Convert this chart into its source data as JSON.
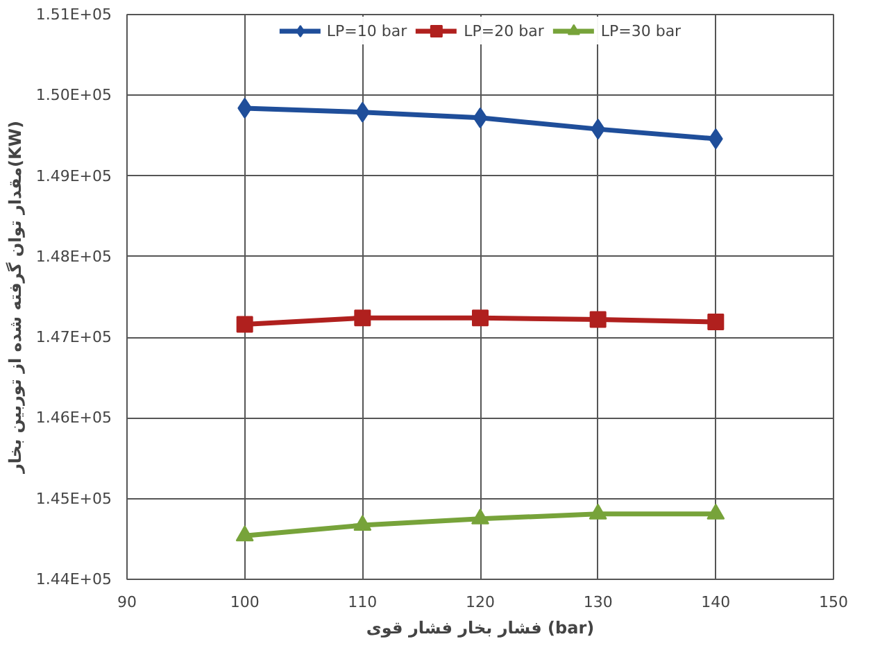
{
  "chart_data": {
    "type": "line",
    "xlabel": "فشار بخار فشار قوی (bar)",
    "ylabel": "مقدار توان گرفته شده از توربین بخار(KW)",
    "x": [
      100,
      110,
      120,
      130,
      140
    ],
    "series": [
      {
        "name": "LP=10 bar",
        "color": "#1f4e9a",
        "marker": "diamond",
        "values": [
          149840,
          149790,
          149720,
          149580,
          149460
        ]
      },
      {
        "name": "LP=20 bar",
        "color": "#b0201e",
        "marker": "square",
        "values": [
          147160,
          147240,
          147240,
          147220,
          147190
        ]
      },
      {
        "name": "LP=30 bar",
        "color": "#77a33a",
        "marker": "triangle",
        "values": [
          144540,
          144670,
          144750,
          144810,
          144810
        ]
      }
    ],
    "xlim": [
      90,
      150
    ],
    "xticks": [
      90,
      100,
      110,
      120,
      130,
      140,
      150
    ],
    "ylim": [
      144000,
      151000
    ],
    "yticks": [
      {
        "value": 144000,
        "label": "1.44E+05"
      },
      {
        "value": 145000,
        "label": "1.45E+05"
      },
      {
        "value": 146000,
        "label": "1.46E+05"
      },
      {
        "value": 147000,
        "label": "1.47E+05"
      },
      {
        "value": 148000,
        "label": "1.48E+05"
      },
      {
        "value": 149000,
        "label": "1.49E+05"
      },
      {
        "value": 150000,
        "label": "1.50E+05"
      },
      {
        "value": 151000,
        "label": "1.51E+05"
      }
    ],
    "grid": true,
    "legend": "top",
    "line_style": "solid"
  }
}
